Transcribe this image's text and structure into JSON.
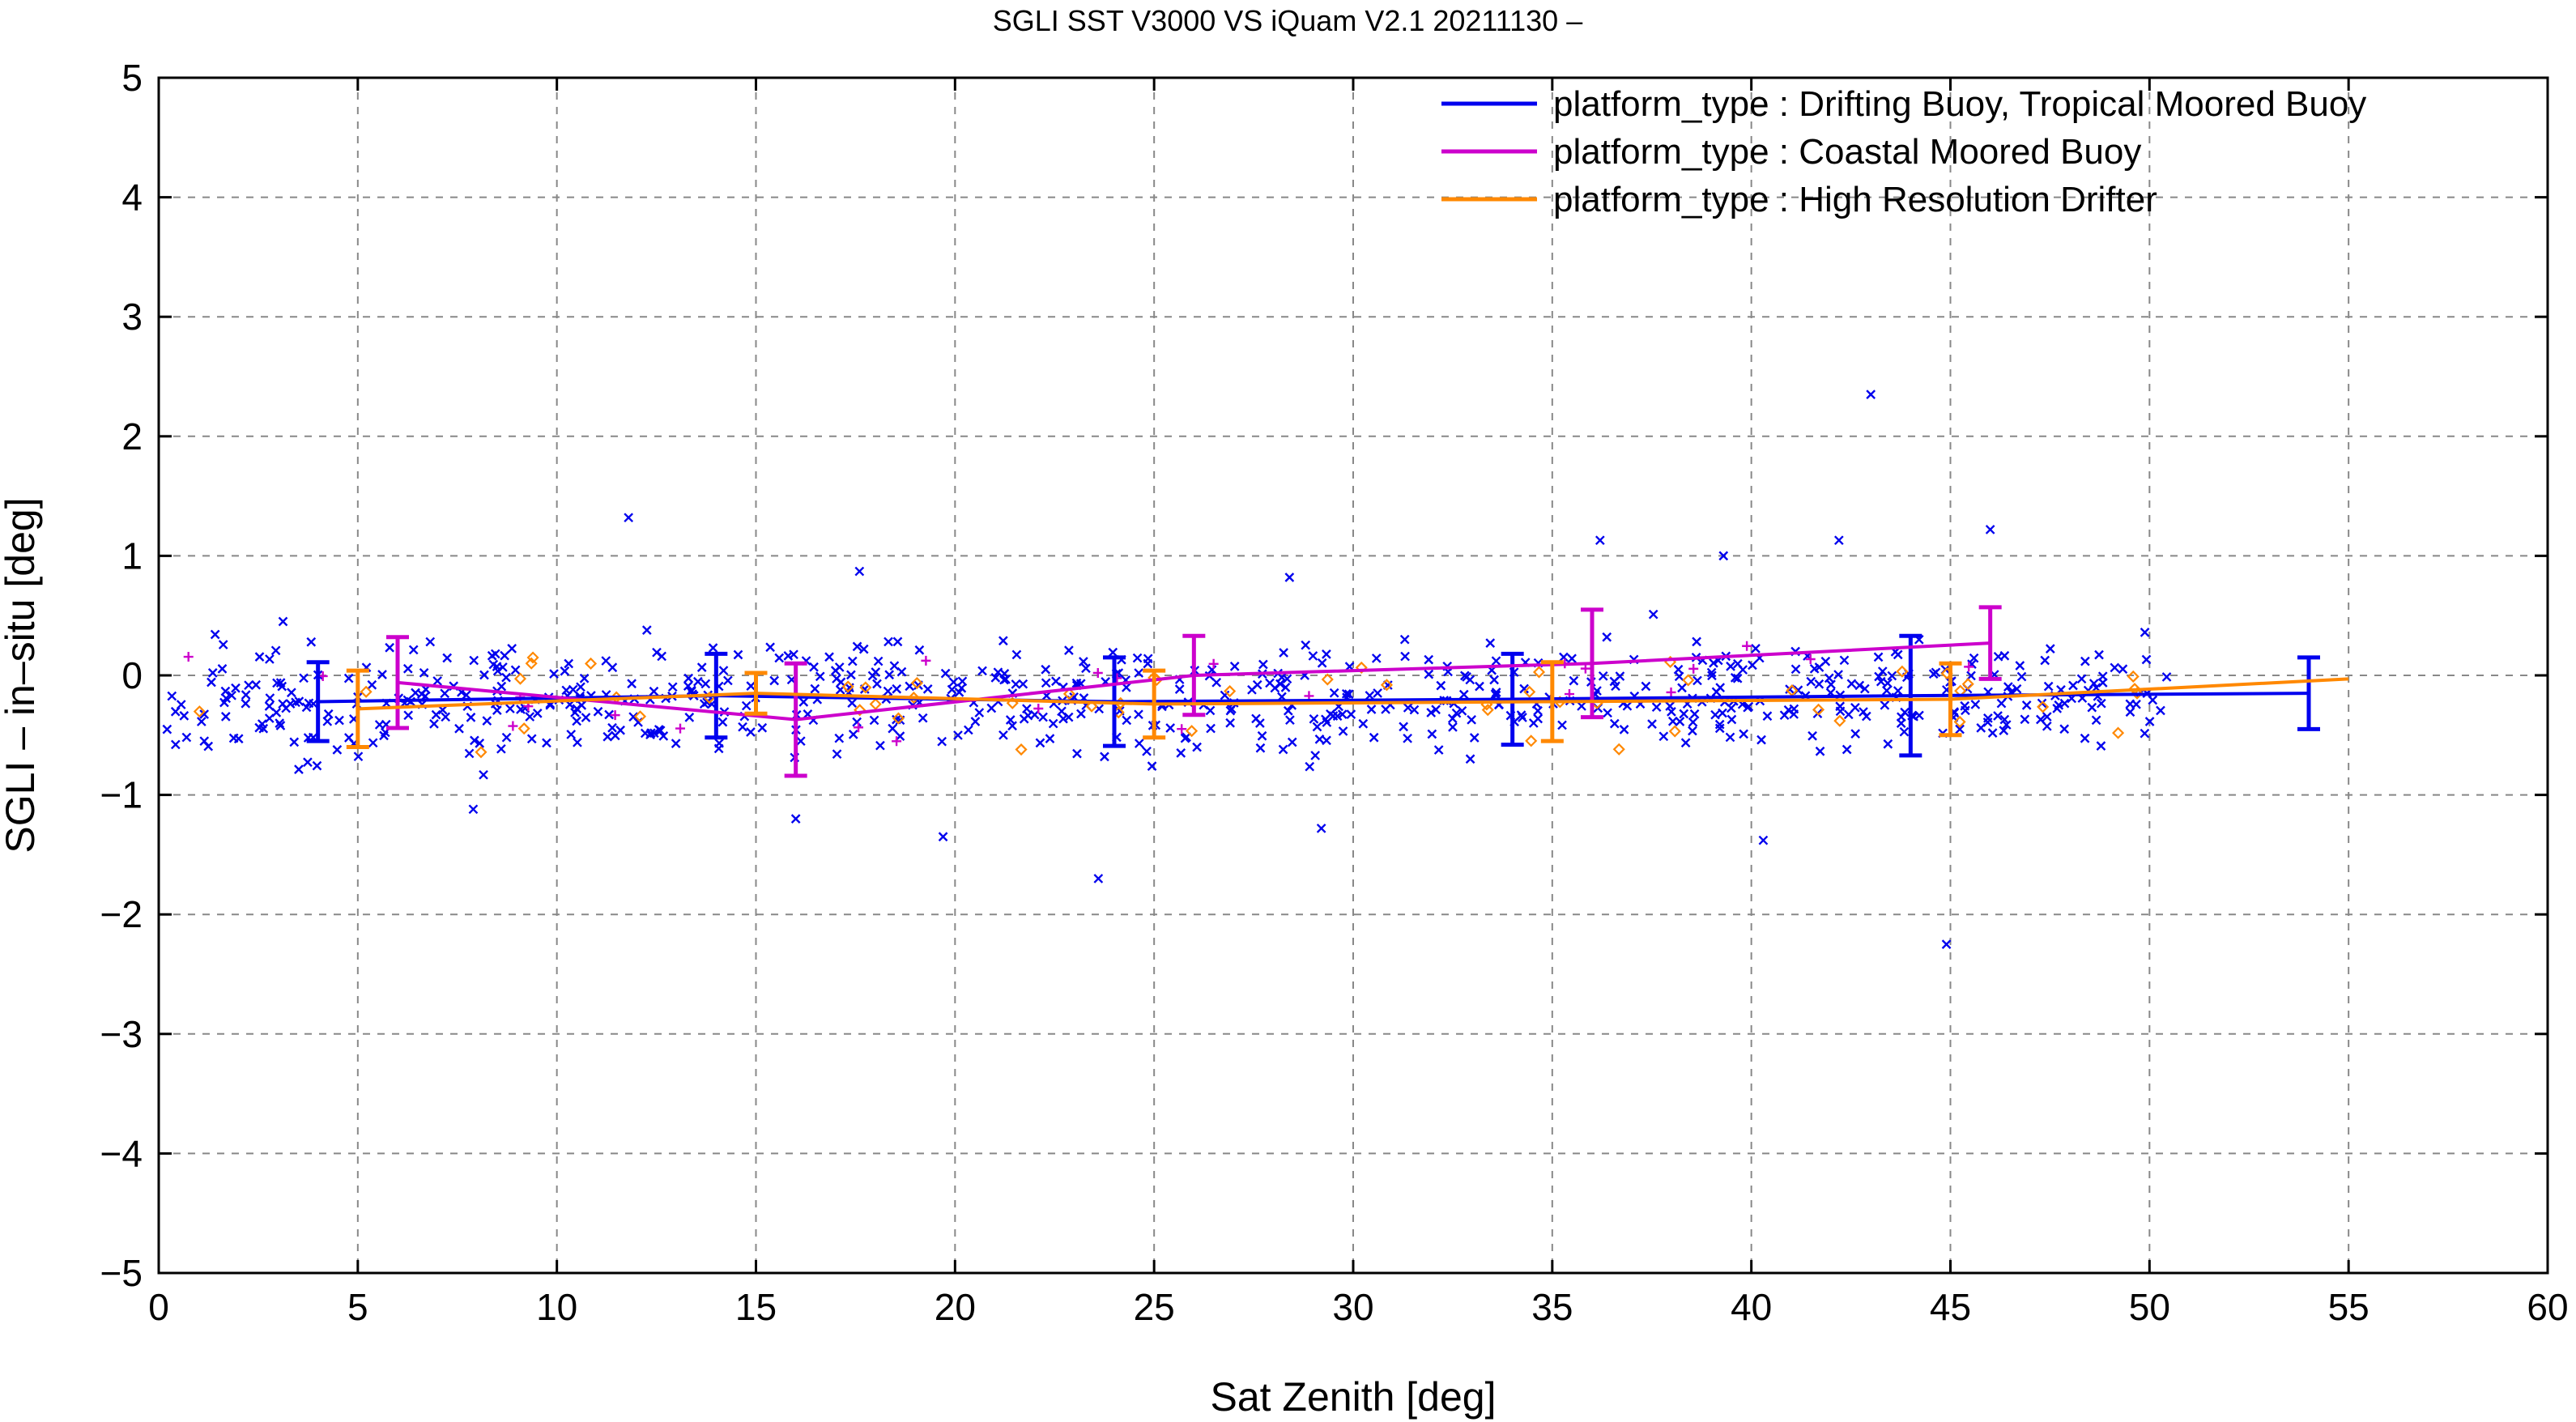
{
  "chart_data": {
    "type": "scatter",
    "title": "SGLI SST V3000 VS iQuam V2.1 20211130 –",
    "xlabel": "Sat Zenith [deg]",
    "ylabel": "SGLI – in–situ [deg]",
    "xlim": [
      0,
      60
    ],
    "ylim": [
      -5,
      5
    ],
    "xticks": [
      "0",
      "5",
      "10",
      "15",
      "20",
      "25",
      "30",
      "35",
      "40",
      "45",
      "50",
      "55",
      "60"
    ],
    "yticks": [
      "−5",
      "−4",
      "−3",
      "−2",
      "−1",
      "0",
      "1",
      "2",
      "3",
      "4",
      "5"
    ],
    "grid": true,
    "legend_position": "top-right",
    "series": [
      {
        "name": "platform_type : Drifting Buoy, Tropical Moored Buoy",
        "color": "#0000ee",
        "marker": "x",
        "binned_mean": {
          "x": [
            4,
            14,
            24,
            34,
            44,
            54
          ],
          "y": [
            -0.22,
            -0.17,
            -0.22,
            -0.2,
            -0.17,
            -0.15
          ],
          "err": [
            0.33,
            0.35,
            0.37,
            0.38,
            0.5,
            0.3
          ]
        },
        "notable_points": [
          {
            "x": 11.8,
            "y": 1.32
          },
          {
            "x": 43.0,
            "y": 2.35
          },
          {
            "x": 44.9,
            "y": -2.25
          },
          {
            "x": 23.6,
            "y": -1.7
          },
          {
            "x": 46.0,
            "y": 1.22
          },
          {
            "x": 42.2,
            "y": 1.13
          },
          {
            "x": 36.2,
            "y": 1.13
          },
          {
            "x": 39.3,
            "y": 1.0
          },
          {
            "x": 17.6,
            "y": 0.87
          },
          {
            "x": 28.4,
            "y": 0.82
          },
          {
            "x": 7.9,
            "y": -1.12
          },
          {
            "x": 16.0,
            "y": -1.2
          },
          {
            "x": 40.3,
            "y": -1.38
          },
          {
            "x": 29.2,
            "y": -1.28
          },
          {
            "x": 19.7,
            "y": -1.35
          },
          {
            "x": 42.4,
            "y": -0.62
          }
        ]
      },
      {
        "name": "platform_type : Coastal Moored Buoy",
        "color": "#cc00cc",
        "marker": "+",
        "binned_mean": {
          "x": [
            6,
            16,
            26,
            36,
            46
          ],
          "y": [
            -0.06,
            -0.37,
            0.0,
            0.1,
            0.27
          ],
          "err": [
            0.38,
            0.47,
            0.33,
            0.45,
            0.3
          ]
        }
      },
      {
        "name": "platform_type : High Resolution Drifter",
        "color": "#ff8800",
        "marker": "diamond",
        "binned_mean": {
          "x": [
            5,
            15,
            25,
            35,
            45,
            55
          ],
          "y": [
            -0.28,
            -0.15,
            -0.24,
            -0.22,
            -0.2,
            -0.03
          ],
          "err": [
            0.32,
            0.17,
            0.28,
            0.33,
            0.3,
            0.0
          ]
        }
      }
    ]
  }
}
